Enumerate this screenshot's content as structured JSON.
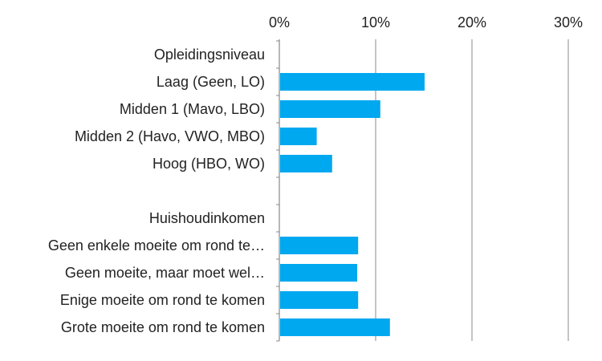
{
  "chart_data": {
    "type": "bar",
    "orientation": "horizontal",
    "categories": [
      "Opleidingsniveau",
      "Laag (Geen, LO)",
      "Midden 1 (Mavo, LBO)",
      "Midden 2 (Havo, VWO, MBO)",
      "Hoog (HBO, WO)",
      "",
      "Huishoudinkomen",
      "Geen enkele moeite om rond te…",
      "Geen moeite, maar moet wel…",
      "Enige moeite om rond te komen",
      "Grote moeite om rond te komen"
    ],
    "values": [
      null,
      15.0,
      10.4,
      3.8,
      5.4,
      null,
      null,
      8.1,
      8.0,
      8.1,
      11.4
    ],
    "xlim": [
      0,
      30
    ],
    "x_ticks": [
      0,
      10,
      20,
      30
    ],
    "x_tick_labels": [
      "0%",
      "10%",
      "20%",
      "30%"
    ],
    "x_axis_position": "top",
    "grid": true,
    "bar_color": "#00a8f0",
    "axis_color": "#888888",
    "title": "",
    "xlabel": "",
    "ylabel": ""
  }
}
